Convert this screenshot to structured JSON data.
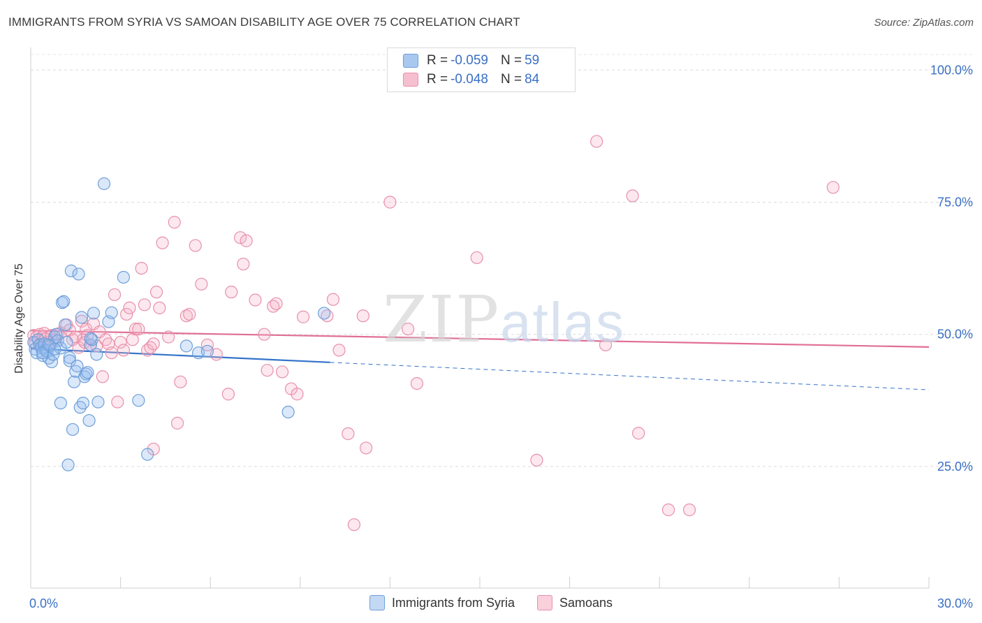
{
  "title": "IMMIGRANTS FROM SYRIA VS SAMOAN DISABILITY AGE OVER 75 CORRELATION CHART",
  "source": "Source: ZipAtlas.com",
  "watermark": {
    "zip": "ZIP",
    "atlas": "atlas"
  },
  "legend": {
    "r_label": "R =",
    "n_label": "N =",
    "rows": [
      {
        "r": "-0.059",
        "n": "59",
        "color": "#a9c8ef",
        "border": "#6f9fd8"
      },
      {
        "r": "-0.048",
        "n": "84",
        "color": "#f6bfd0",
        "border": "#e890ac"
      }
    ]
  },
  "bottom_legend": [
    {
      "label": "Immigrants from Syria",
      "color": "#c3d8f3",
      "border": "#6f9fd8"
    },
    {
      "label": "Samoans",
      "color": "#f9d0dc",
      "border": "#e890ac"
    }
  ],
  "chart_data": {
    "type": "scatter",
    "xlabel": "",
    "ylabel": "Disability Age Over 75",
    "xlim": [
      0,
      30
    ],
    "ylim": [
      2,
      104
    ],
    "x_tick_labels": [
      {
        "value": 0,
        "label": "0.0%"
      },
      {
        "value": 30,
        "label": "30.0%"
      }
    ],
    "y_tick_labels": [
      {
        "value": 25,
        "label": "25.0%"
      },
      {
        "value": 50,
        "label": "50.0%"
      },
      {
        "value": 75,
        "label": "75.0%"
      },
      {
        "value": 100,
        "label": "100.0%"
      }
    ],
    "grid": "horizontal dashed",
    "series": [
      {
        "name": "Immigrants from Syria",
        "stroke": "#6f9fd8",
        "fill": "rgba(150,190,240,0.35)",
        "points": [
          [
            0.1,
            48.5
          ],
          [
            0.15,
            47.2
          ],
          [
            0.2,
            46.5
          ],
          [
            0.25,
            49.0
          ],
          [
            0.3,
            48.0
          ],
          [
            0.35,
            47.5
          ],
          [
            0.4,
            46.0
          ],
          [
            0.45,
            48.2
          ],
          [
            0.5,
            47.0
          ],
          [
            0.55,
            46.8
          ],
          [
            0.6,
            45.5
          ],
          [
            0.65,
            47.8
          ],
          [
            0.7,
            44.8
          ],
          [
            0.75,
            46.2
          ],
          [
            0.8,
            49.5
          ],
          [
            0.85,
            50.0
          ],
          [
            0.9,
            48.8
          ],
          [
            1.0,
            47.4
          ],
          [
            1.0,
            37.0
          ],
          [
            1.05,
            56.0
          ],
          [
            1.1,
            56.2
          ],
          [
            1.15,
            51.8
          ],
          [
            1.2,
            48.5
          ],
          [
            1.3,
            45.6
          ],
          [
            1.3,
            45.0
          ],
          [
            1.35,
            62.0
          ],
          [
            1.4,
            32.0
          ],
          [
            1.45,
            41.0
          ],
          [
            1.5,
            43.0
          ],
          [
            1.55,
            44.0
          ],
          [
            1.6,
            61.4
          ],
          [
            1.65,
            36.2
          ],
          [
            1.7,
            53.2
          ],
          [
            1.75,
            37.0
          ],
          [
            1.8,
            42.0
          ],
          [
            1.85,
            42.5
          ],
          [
            1.9,
            42.8
          ],
          [
            1.95,
            33.7
          ],
          [
            2.0,
            48.0
          ],
          [
            2.05,
            49.0
          ],
          [
            2.1,
            54.0
          ],
          [
            2.2,
            46.2
          ],
          [
            2.25,
            37.2
          ],
          [
            2.45,
            78.5
          ],
          [
            2.6,
            52.4
          ],
          [
            2.7,
            54.1
          ],
          [
            3.1,
            60.8
          ],
          [
            3.6,
            37.5
          ],
          [
            3.9,
            27.3
          ],
          [
            5.2,
            47.8
          ],
          [
            5.6,
            46.5
          ],
          [
            5.9,
            46.8
          ],
          [
            8.6,
            35.3
          ],
          [
            9.8,
            54.0
          ],
          [
            0.4,
            46.5
          ],
          [
            0.6,
            48.0
          ],
          [
            0.8,
            47.2
          ],
          [
            1.25,
            25.3
          ],
          [
            2.0,
            49.2
          ]
        ],
        "trend": {
          "solid": [
            [
              0.0,
              47.3
            ],
            [
              10.0,
              44.7
            ]
          ],
          "dashed": [
            [
              10.0,
              44.7
            ],
            [
              30.0,
              39.5
            ]
          ],
          "color": "#3573c9"
        }
      },
      {
        "name": "Samoans",
        "stroke": "#e890ac",
        "fill": "rgba(246,180,200,0.30)",
        "points": [
          [
            0.1,
            49.8
          ],
          [
            0.15,
            48.5
          ],
          [
            0.2,
            49.5
          ],
          [
            0.3,
            50.0
          ],
          [
            0.35,
            48.0
          ],
          [
            0.4,
            49.5
          ],
          [
            0.45,
            50.2
          ],
          [
            0.5,
            49.2
          ],
          [
            0.6,
            48.5
          ],
          [
            0.7,
            49.8
          ],
          [
            0.8,
            49.0
          ],
          [
            0.9,
            50.0
          ],
          [
            1.0,
            50.3
          ],
          [
            1.2,
            51.8
          ],
          [
            1.3,
            50.8
          ],
          [
            1.4,
            49.0
          ],
          [
            1.5,
            49.5
          ],
          [
            1.6,
            47.5
          ],
          [
            1.7,
            52.5
          ],
          [
            1.75,
            49.0
          ],
          [
            1.8,
            48.5
          ],
          [
            1.85,
            51.0
          ],
          [
            1.9,
            49.8
          ],
          [
            2.0,
            48.0
          ],
          [
            2.1,
            52.0
          ],
          [
            2.2,
            47.8
          ],
          [
            2.3,
            50.5
          ],
          [
            2.4,
            42.0
          ],
          [
            2.5,
            49.0
          ],
          [
            2.6,
            48.2
          ],
          [
            2.7,
            46.5
          ],
          [
            2.8,
            57.5
          ],
          [
            2.9,
            37.2
          ],
          [
            3.0,
            48.5
          ],
          [
            3.1,
            47.0
          ],
          [
            3.2,
            53.8
          ],
          [
            3.3,
            55.0
          ],
          [
            3.4,
            49.0
          ],
          [
            3.5,
            51.0
          ],
          [
            3.6,
            51.0
          ],
          [
            3.7,
            62.5
          ],
          [
            3.8,
            55.6
          ],
          [
            3.9,
            47.0
          ],
          [
            4.0,
            47.5
          ],
          [
            4.1,
            48.2
          ],
          [
            4.2,
            58.0
          ],
          [
            4.3,
            55.0
          ],
          [
            4.4,
            67.3
          ],
          [
            4.6,
            49.5
          ],
          [
            4.8,
            71.2
          ],
          [
            4.9,
            33.2
          ],
          [
            5.0,
            41.0
          ],
          [
            5.2,
            53.5
          ],
          [
            5.3,
            53.8
          ],
          [
            5.5,
            66.8
          ],
          [
            5.7,
            59.5
          ],
          [
            5.9,
            48.0
          ],
          [
            6.2,
            46.2
          ],
          [
            6.6,
            38.7
          ],
          [
            6.7,
            58.0
          ],
          [
            7.0,
            68.3
          ],
          [
            7.1,
            63.3
          ],
          [
            7.2,
            67.7
          ],
          [
            7.5,
            56.5
          ],
          [
            7.8,
            50.0
          ],
          [
            7.9,
            43.2
          ],
          [
            8.1,
            55.3
          ],
          [
            8.2,
            55.8
          ],
          [
            8.4,
            42.9
          ],
          [
            8.7,
            39.7
          ],
          [
            8.9,
            38.7
          ],
          [
            9.1,
            53.3
          ],
          [
            9.9,
            53.5
          ],
          [
            10.1,
            56.6
          ],
          [
            10.3,
            47.0
          ],
          [
            10.6,
            31.2
          ],
          [
            10.8,
            14.0
          ],
          [
            11.1,
            53.5
          ],
          [
            11.2,
            28.5
          ],
          [
            12.0,
            75.0
          ],
          [
            12.9,
            40.7
          ],
          [
            14.9,
            64.5
          ],
          [
            16.9,
            26.2
          ],
          [
            18.9,
            86.5
          ]
        ],
        "extra_points": [
          [
            20.1,
            76.2
          ],
          [
            20.3,
            31.3
          ],
          [
            21.3,
            16.8
          ],
          [
            22.0,
            16.8
          ],
          [
            26.8,
            77.8
          ],
          [
            4.1,
            28.3
          ],
          [
            12.6,
            51.0
          ],
          [
            19.2,
            48.0
          ]
        ],
        "trend": {
          "solid": [
            [
              0.0,
              50.7
            ],
            [
              30.0,
              47.6
            ]
          ],
          "color": "#e06e96"
        }
      }
    ]
  }
}
